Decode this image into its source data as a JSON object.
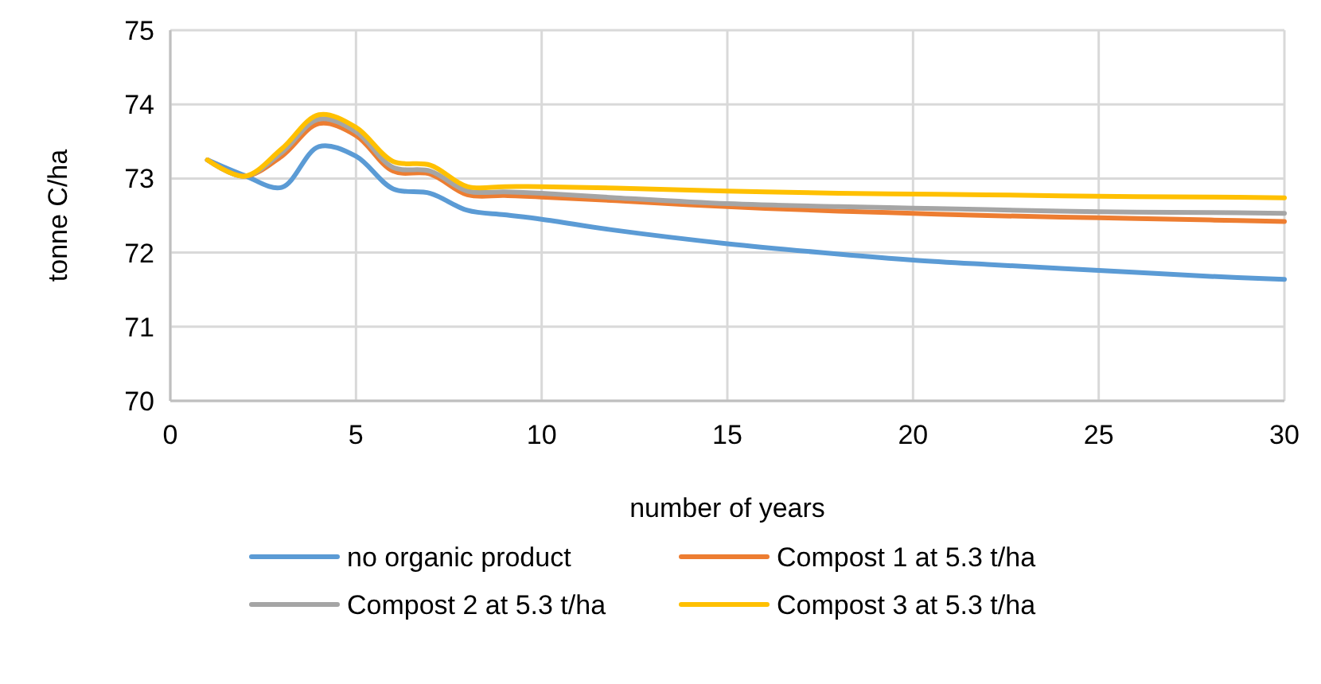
{
  "chart_data": {
    "type": "line",
    "xlabel": "number of years",
    "ylabel": "tonne C/ha",
    "xlim": [
      0,
      30
    ],
    "xticks": [
      0,
      5,
      10,
      15,
      20,
      25,
      30
    ],
    "ylim": [
      70,
      75
    ],
    "yticks": [
      70,
      71,
      72,
      73,
      74,
      75
    ],
    "grid": true,
    "legend": "bottom",
    "marker": "none",
    "line_style": "solid",
    "x": [
      1,
      2,
      3,
      4,
      5,
      6,
      7,
      8,
      9,
      10,
      12,
      15,
      18,
      20,
      22,
      25,
      28,
      30
    ],
    "series": [
      {
        "name": "no organic product",
        "color": "#5b9bd5",
        "values": [
          73.25,
          73.04,
          72.88,
          73.43,
          73.3,
          72.86,
          72.8,
          72.57,
          72.51,
          72.45,
          72.3,
          72.12,
          71.98,
          71.9,
          71.84,
          71.76,
          71.68,
          71.64
        ]
      },
      {
        "name": "Compost 1 at 5.3 t/ha",
        "color": "#ed7d31",
        "values": [
          73.25,
          73.03,
          73.3,
          73.74,
          73.58,
          73.1,
          73.06,
          72.78,
          72.77,
          72.75,
          72.7,
          72.62,
          72.56,
          72.53,
          72.5,
          72.47,
          72.44,
          72.42
        ]
      },
      {
        "name": "Compost 2 at 5.3 t/ha",
        "color": "#a5a5a5",
        "values": [
          73.25,
          73.03,
          73.35,
          73.8,
          73.63,
          73.15,
          73.1,
          72.83,
          72.82,
          72.8,
          72.74,
          72.66,
          72.62,
          72.6,
          72.58,
          72.55,
          72.54,
          72.53
        ]
      },
      {
        "name": "Compost 3 at 5.3 t/ha",
        "color": "#ffc000",
        "values": [
          73.25,
          73.03,
          73.4,
          73.86,
          73.69,
          73.23,
          73.18,
          72.89,
          72.89,
          72.89,
          72.87,
          72.83,
          72.8,
          72.79,
          72.78,
          72.76,
          72.75,
          72.74
        ]
      }
    ]
  }
}
